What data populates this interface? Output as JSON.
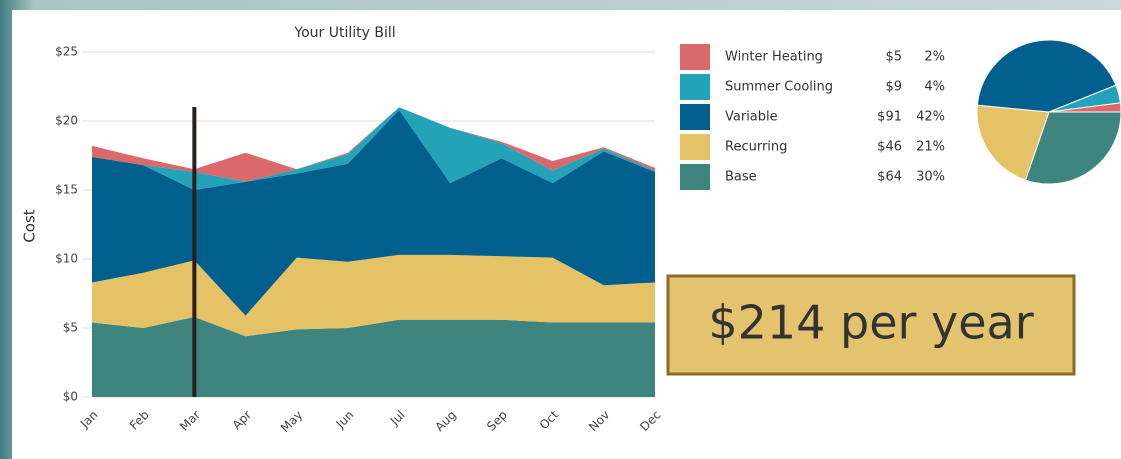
{
  "chart_data": [
    {
      "type": "stacked_area",
      "title": "Your Utility Bill",
      "y_label": "Cost",
      "categories": [
        "Jan",
        "Feb",
        "Mar",
        "Apr",
        "May",
        "Jun",
        "Jul",
        "Aug",
        "Sep",
        "Oct",
        "Nov",
        "Dec"
      ],
      "series": [
        {
          "name": "Base",
          "color": "#3e8580",
          "values": [
            5.4,
            5.0,
            5.8,
            4.4,
            4.9,
            5.0,
            5.6,
            5.6,
            5.6,
            5.4,
            5.4,
            5.4
          ]
        },
        {
          "name": "Recurring",
          "color": "#e4c265",
          "values": [
            2.9,
            4.0,
            4.1,
            1.5,
            5.2,
            4.8,
            4.7,
            4.7,
            4.6,
            4.7,
            2.7,
            2.9
          ]
        },
        {
          "name": "Variable",
          "color": "#005f8c",
          "values": [
            9.1,
            7.8,
            5.1,
            9.7,
            6.1,
            7.1,
            10.5,
            5.2,
            7.1,
            5.4,
            9.7,
            8.0
          ]
        },
        {
          "name": "Summer Cooling",
          "color": "#22a3b8",
          "values": [
            0,
            0,
            1.3,
            0,
            0.3,
            0.7,
            0.2,
            4.0,
            1.1,
            0.9,
            0.2,
            0.1
          ]
        },
        {
          "name": "Winter Heating",
          "color": "#d9696a",
          "values": [
            0.8,
            0.5,
            0.2,
            2.1,
            0,
            0.1,
            0,
            0,
            0.1,
            0.7,
            0.1,
            0.2
          ]
        }
      ],
      "ylim": [
        0,
        25
      ],
      "yticks": [
        {
          "value": 0,
          "label": "$0"
        },
        {
          "value": 5,
          "label": "$5"
        },
        {
          "value": 10,
          "label": "$10"
        },
        {
          "value": 15,
          "label": "$15"
        },
        {
          "value": 20,
          "label": "$20"
        },
        {
          "value": 25,
          "label": "$25"
        }
      ],
      "grid": true,
      "highlight_index": 2
    },
    {
      "type": "pie",
      "values": [
        30,
        21,
        42,
        4,
        2
      ],
      "value_labels": [
        "30%",
        "21%",
        "42%",
        "4%",
        "2%"
      ],
      "amounts": [
        64,
        46,
        91,
        9,
        5
      ],
      "amount_labels": [
        "$64",
        "$46",
        "$91",
        "$9",
        "$5"
      ]
    }
  ],
  "summary": "$214 per year"
}
